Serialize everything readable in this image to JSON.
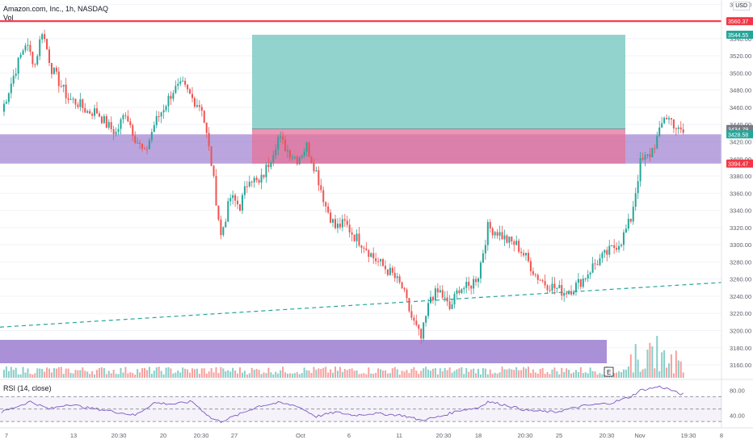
{
  "header": {
    "symbol_line": "Amazon.com, Inc., 1h, NASDAQ",
    "volume_label": "Vol",
    "currency": "USD",
    "rsi_label": "RSI (14, close)",
    "events_badge": "E"
  },
  "colors": {
    "up": "#26a69a",
    "down": "#ef5350",
    "resistance_line": "#f23645",
    "zone": "#9575cd",
    "target_zone": "#80cbc4",
    "stop_zone": "#e57399",
    "trendline": "#26a69a",
    "rsi_line": "#7e57c2"
  },
  "chart_data": {
    "type": "candlestick",
    "symbol": "AMZN",
    "interval": "1h",
    "y_axis": {
      "range": [
        3145,
        3585
      ],
      "ticks": [
        3160,
        3180,
        3200,
        3220,
        3240,
        3260,
        3280,
        3300,
        3320,
        3340,
        3360,
        3380,
        3400,
        3420,
        3440,
        3460,
        3480,
        3500,
        3520,
        3540,
        3560,
        3580
      ],
      "price_badges": [
        {
          "label": "3560.37",
          "value": 3560.37,
          "color": "#f23645"
        },
        {
          "label": "3544.55",
          "value": 3544.55,
          "color": "#26a69a"
        },
        {
          "label": "3434.79",
          "value": 3434.79,
          "color": "#787b86"
        },
        {
          "label": "3428.58",
          "value": 3428.58,
          "color": "#26a69a"
        },
        {
          "label": "3394.47",
          "value": 3394.47,
          "color": "#f23645"
        }
      ]
    },
    "x_axis": {
      "ticks": [
        "7",
        "13",
        "20:30",
        "20",
        "20:30",
        "27",
        "Oct",
        "6",
        "11",
        "20:30",
        "18",
        "20:30",
        "25",
        "20:30",
        "Nov",
        "19:30",
        "8"
      ]
    },
    "key_path": [
      [
        0,
        3455
      ],
      [
        6,
        3505
      ],
      [
        10,
        3535
      ],
      [
        14,
        3510
      ],
      [
        17,
        3550
      ],
      [
        21,
        3505
      ],
      [
        24,
        3490
      ],
      [
        28,
        3470
      ],
      [
        32,
        3465
      ],
      [
        36,
        3455
      ],
      [
        40,
        3455
      ],
      [
        44,
        3440
      ],
      [
        48,
        3430
      ],
      [
        52,
        3455
      ],
      [
        56,
        3425
      ],
      [
        60,
        3405
      ],
      [
        64,
        3440
      ],
      [
        68,
        3460
      ],
      [
        72,
        3480
      ],
      [
        76,
        3485
      ],
      [
        80,
        3470
      ],
      [
        84,
        3460
      ],
      [
        88,
        3395
      ],
      [
        92,
        3310
      ],
      [
        96,
        3355
      ],
      [
        100,
        3345
      ],
      [
        104,
        3380
      ],
      [
        108,
        3370
      ],
      [
        112,
        3395
      ],
      [
        116,
        3425
      ],
      [
        120,
        3410
      ],
      [
        124,
        3400
      ],
      [
        128,
        3415
      ],
      [
        132,
        3385
      ],
      [
        136,
        3345
      ],
      [
        140,
        3320
      ],
      [
        144,
        3325
      ],
      [
        148,
        3310
      ],
      [
        152,
        3300
      ],
      [
        156,
        3285
      ],
      [
        160,
        3275
      ],
      [
        164,
        3265
      ],
      [
        168,
        3250
      ],
      [
        172,
        3215
      ],
      [
        176,
        3190
      ],
      [
        180,
        3240
      ],
      [
        184,
        3245
      ],
      [
        188,
        3225
      ],
      [
        192,
        3250
      ],
      [
        196,
        3250
      ],
      [
        200,
        3265
      ],
      [
        204,
        3320
      ],
      [
        208,
        3315
      ],
      [
        212,
        3305
      ],
      [
        216,
        3300
      ],
      [
        220,
        3285
      ],
      [
        224,
        3265
      ],
      [
        228,
        3255
      ],
      [
        232,
        3250
      ],
      [
        236,
        3245
      ],
      [
        240,
        3250
      ],
      [
        244,
        3260
      ],
      [
        248,
        3275
      ],
      [
        252,
        3285
      ],
      [
        256,
        3295
      ],
      [
        260,
        3305
      ],
      [
        264,
        3330
      ],
      [
        268,
        3395
      ],
      [
        272,
        3405
      ],
      [
        276,
        3430
      ],
      [
        278,
        3450
      ],
      [
        281,
        3445
      ],
      [
        284,
        3432
      ],
      [
        286,
        3430
      ]
    ],
    "levels": {
      "resistance": 3560.37,
      "long_target": 3544.55,
      "long_entry": 3434.79,
      "stop": 3394.47,
      "demand_zone": [
        3394.47,
        3428.58
      ]
    },
    "long_position": {
      "target": 3544.55,
      "entry": 3434.79,
      "stop": 3394.47
    },
    "trendline": {
      "from": 3204,
      "to": 3256
    },
    "rsi": {
      "levels": [
        70,
        50,
        30
      ],
      "ticks": [
        80,
        40
      ],
      "range": [
        25,
        95
      ],
      "key_path": [
        [
          0,
          45
        ],
        [
          12,
          62
        ],
        [
          20,
          50
        ],
        [
          28,
          58
        ],
        [
          36,
          52
        ],
        [
          44,
          48
        ],
        [
          56,
          40
        ],
        [
          64,
          60
        ],
        [
          72,
          58
        ],
        [
          80,
          62
        ],
        [
          88,
          35
        ],
        [
          92,
          30
        ],
        [
          100,
          42
        ],
        [
          108,
          55
        ],
        [
          116,
          60
        ],
        [
          124,
          55
        ],
        [
          132,
          38
        ],
        [
          140,
          45
        ],
        [
          148,
          40
        ],
        [
          156,
          43
        ],
        [
          168,
          40
        ],
        [
          176,
          32
        ],
        [
          184,
          38
        ],
        [
          192,
          48
        ],
        [
          200,
          52
        ],
        [
          204,
          62
        ],
        [
          212,
          56
        ],
        [
          220,
          48
        ],
        [
          232,
          45
        ],
        [
          244,
          55
        ],
        [
          256,
          60
        ],
        [
          264,
          70
        ],
        [
          268,
          80
        ],
        [
          272,
          83
        ],
        [
          276,
          86
        ],
        [
          280,
          82
        ],
        [
          284,
          75
        ],
        [
          286,
          74
        ]
      ]
    }
  }
}
